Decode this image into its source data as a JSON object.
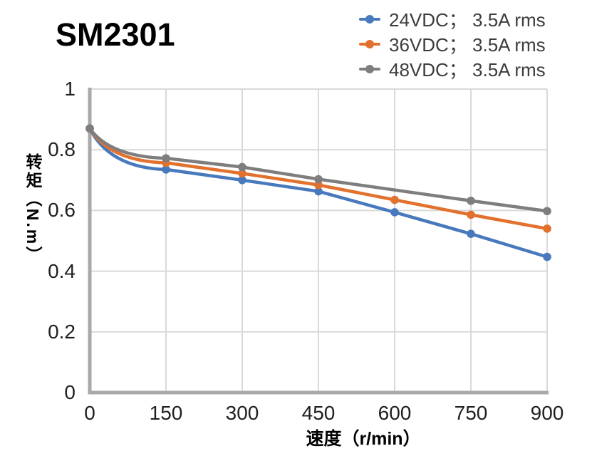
{
  "chart_data": {
    "type": "line",
    "title": "SM2301",
    "xlabel": "速度（r/min）",
    "ylabel": "转矩（N.m）",
    "xlim": [
      0,
      900
    ],
    "ylim": [
      0,
      1
    ],
    "grid": true,
    "legend_position": "top-right",
    "x_ticks": [
      {
        "value": 0,
        "label": "0"
      },
      {
        "value": 150,
        "label": "150"
      },
      {
        "value": 300,
        "label": "300"
      },
      {
        "value": 450,
        "label": "450"
      },
      {
        "value": 600,
        "label": "600"
      },
      {
        "value": 750,
        "label": "750"
      },
      {
        "value": 900,
        "label": "900"
      }
    ],
    "y_ticks": [
      {
        "value": 1,
        "label": "1"
      },
      {
        "value": 0.8,
        "label": "0.8"
      },
      {
        "value": 0.6,
        "label": "0.6"
      },
      {
        "value": 0.4,
        "label": "0.4"
      },
      {
        "value": 0.2,
        "label": "0.2"
      },
      {
        "value": 0,
        "label": "0"
      }
    ],
    "series": [
      {
        "name": "24VDC； 3.5A rms",
        "color": "#4879BD",
        "x": [
          0,
          150,
          300,
          450,
          600,
          750,
          900
        ],
        "y": [
          0.87,
          0.735,
          0.7,
          0.663,
          0.594,
          0.523,
          0.447
        ]
      },
      {
        "name": "36VDC； 3.5A rms",
        "color": "#E2712E",
        "x": [
          0,
          150,
          300,
          450,
          600,
          750,
          900
        ],
        "y": [
          0.87,
          0.757,
          0.722,
          0.684,
          0.635,
          0.586,
          0.54
        ]
      },
      {
        "name": "48VDC； 3.5A rms",
        "color": "#7E7E7E",
        "x": [
          0,
          150,
          300,
          450,
          750,
          900
        ],
        "y": [
          0.87,
          0.772,
          0.743,
          0.703,
          0.632,
          0.598
        ]
      }
    ]
  },
  "colors": {
    "background": "#FFFFFF",
    "axis": "#A9A9A9",
    "grid": "#D9D9D9",
    "tick_text": "#1F1F1F",
    "legend_text": "#3D3D3D",
    "title_text": "#000000"
  }
}
